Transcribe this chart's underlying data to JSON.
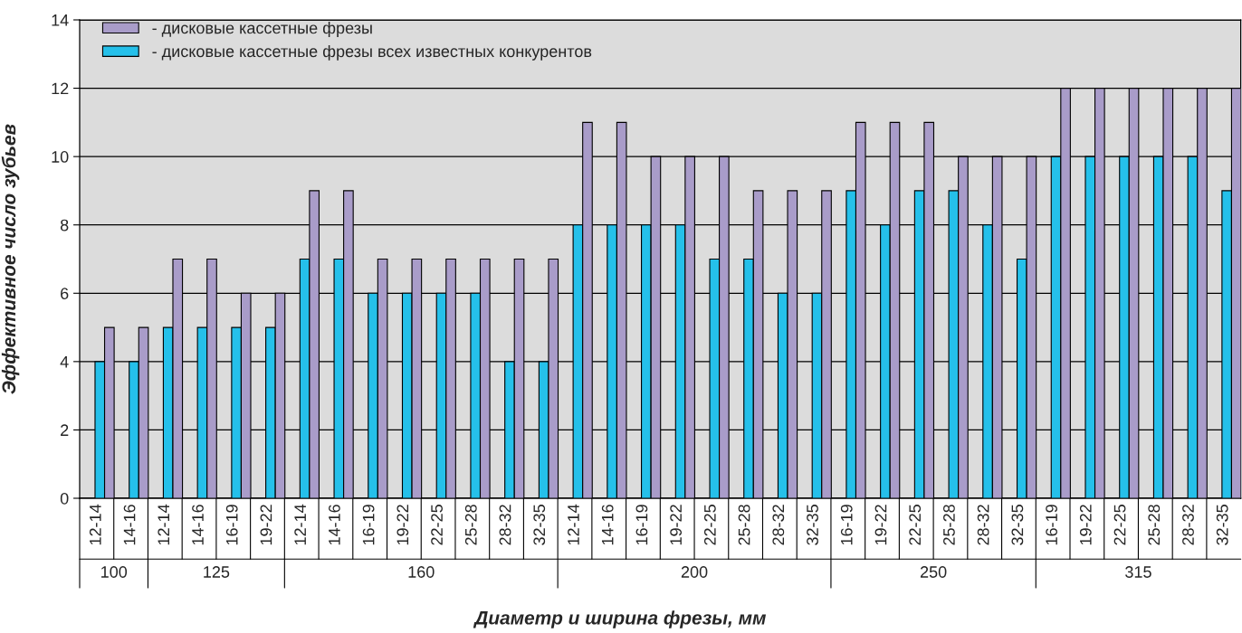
{
  "chart_data": {
    "type": "bar",
    "xlabel": "Диаметр и ширина фрезы, мм",
    "ylabel": "Эффективное число зубьев",
    "categories": [
      "12-14",
      "14-16",
      "12-14",
      "14-16",
      "16-19",
      "19-22",
      "12-14",
      "14-16",
      "16-19",
      "19-22",
      "22-25",
      "25-28",
      "28-32",
      "32-35",
      "12-14",
      "14-16",
      "16-19",
      "19-22",
      "22-25",
      "25-28",
      "28-32",
      "32-35",
      "16-19",
      "19-22",
      "22-25",
      "25-28",
      "28-32",
      "32-35",
      "16-19",
      "19-22",
      "22-25",
      "25-28",
      "28-32",
      "32-35"
    ],
    "annotations": [
      "100",
      "125",
      "160",
      "200",
      "250",
      "315"
    ],
    "series": [
      {
        "name": "- дисковые кассетные фрезы всех известных конкурентов",
        "color": "#25c0ea",
        "values": [
          4,
          4,
          5,
          5,
          5,
          5,
          7,
          7,
          6,
          6,
          6,
          6,
          4,
          4,
          8,
          8,
          8,
          8,
          7,
          7,
          6,
          6,
          9,
          8,
          9,
          9,
          8,
          7,
          10,
          10,
          10,
          10,
          10,
          9
        ]
      },
      {
        "name": "- дисковые кассетные фрезы",
        "color": "#a99cc9",
        "values": [
          5,
          5,
          7,
          7,
          6,
          6,
          9,
          9,
          7,
          7,
          7,
          7,
          7,
          7,
          11,
          11,
          10,
          10,
          10,
          9,
          9,
          9,
          11,
          11,
          11,
          10,
          10,
          10,
          12,
          12,
          12,
          12,
          12,
          12
        ]
      }
    ],
    "ylim": [
      0,
      14
    ],
    "yticks": [
      0,
      2,
      4,
      6,
      8,
      10,
      12,
      14
    ],
    "grid": "y",
    "legend": "top left"
  }
}
